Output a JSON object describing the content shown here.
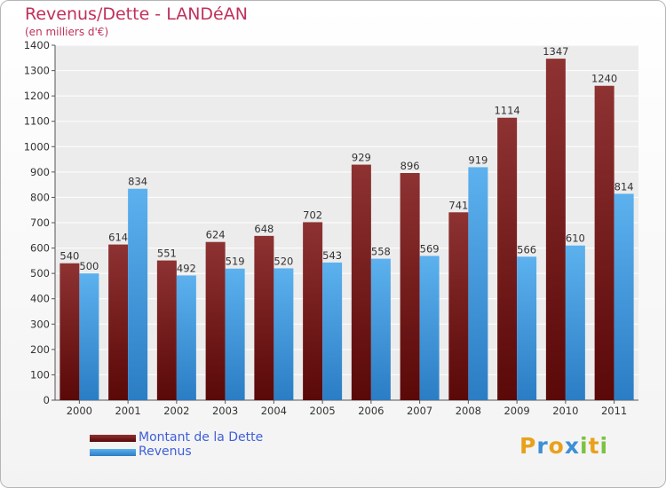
{
  "title": "Revenus/Dette - LANDéAN",
  "subtitle": "(en milliers d'€)",
  "legend": [
    {
      "label": "Montant de la Dette",
      "color": "#7a1c1c"
    },
    {
      "label": "Revenus",
      "color": "#4aa3e6"
    }
  ],
  "logo": {
    "text": "Proxiti",
    "letters": [
      "P",
      "r",
      "o",
      "x",
      "i",
      "t",
      "i"
    ],
    "colors": [
      "#e8a11a",
      "#3d8fd6",
      "#e8a11a",
      "#3d8fd6",
      "#7cc243",
      "#e8a11a",
      "#7cc243"
    ]
  },
  "chart_data": {
    "type": "bar",
    "categories": [
      "2000",
      "2001",
      "2002",
      "2003",
      "2004",
      "2005",
      "2006",
      "2007",
      "2008",
      "2009",
      "2010",
      "2011"
    ],
    "series": [
      {
        "name": "Montant de la Dette",
        "values": [
          540,
          614,
          551,
          624,
          648,
          702,
          929,
          896,
          741,
          1114,
          1347,
          1240
        ],
        "color": "#7a1c1c"
      },
      {
        "name": "Revenus",
        "values": [
          500,
          834,
          492,
          519,
          520,
          543,
          558,
          569,
          919,
          566,
          610,
          814
        ],
        "color": "#4aa3e6"
      }
    ],
    "ylim": [
      0,
      1400
    ],
    "yticks": [
      0,
      100,
      200,
      300,
      400,
      500,
      600,
      700,
      800,
      900,
      1000,
      1100,
      1200,
      1300,
      1400
    ],
    "grid": true,
    "legend_position": "bottom-left"
  }
}
